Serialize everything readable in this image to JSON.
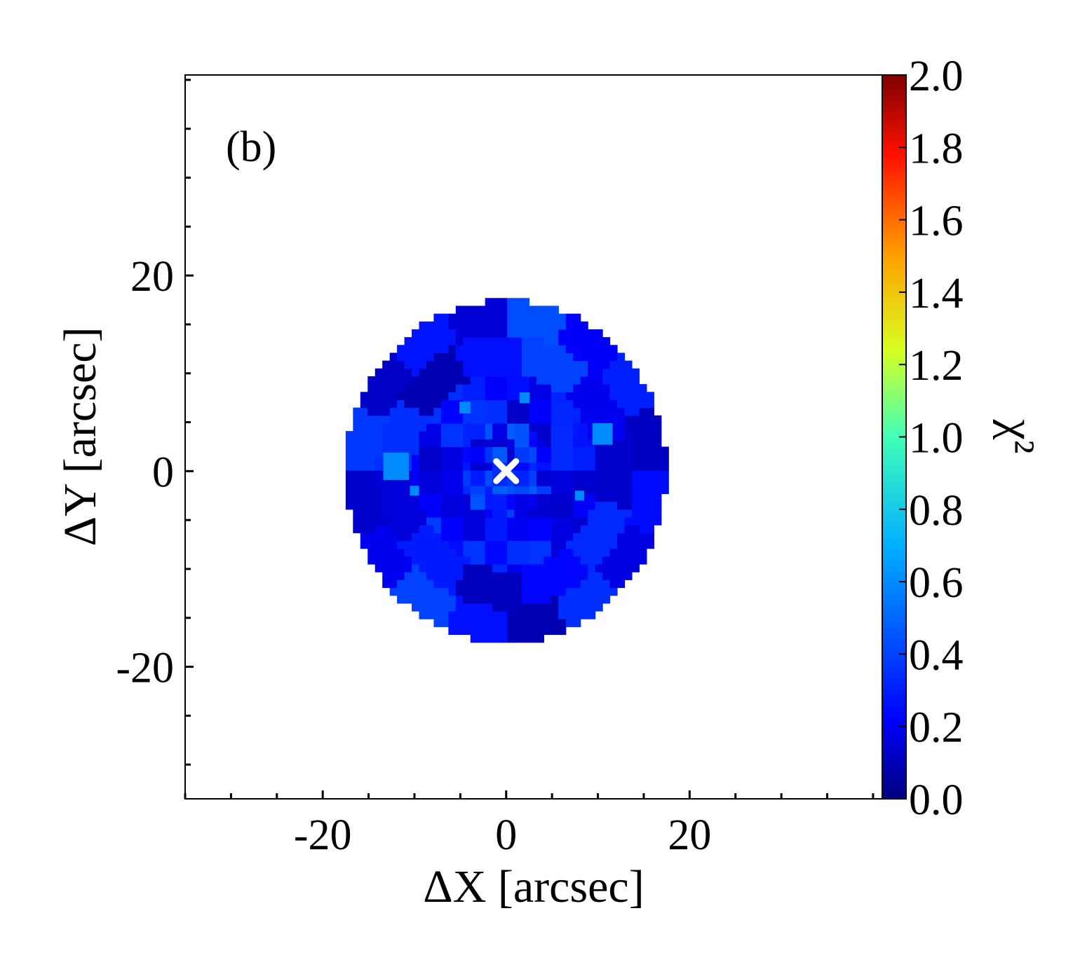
{
  "chart_data": {
    "type": "heatmap",
    "panel_label": "(b)",
    "xlabel": "ΔX [arcsec]",
    "ylabel": "ΔY [arcsec]",
    "xlim": [
      -35,
      41
    ],
    "ylim": [
      -33.5,
      40.5
    ],
    "x_ticks": [
      {
        "value": -20,
        "label": "-20"
      },
      {
        "value": 0,
        "label": "0"
      },
      {
        "value": 20,
        "label": "20"
      }
    ],
    "y_ticks": [
      {
        "value": 20,
        "label": "20"
      },
      {
        "value": 0,
        "label": "0"
      },
      {
        "value": -20,
        "label": "-20"
      }
    ],
    "x_minor_step": 5,
    "y_minor_step": 5,
    "colorbar": {
      "label": "χ²",
      "colormap": "jet",
      "range": [
        0.0,
        2.0
      ],
      "ticks": [
        "0.0",
        "0.2",
        "0.4",
        "0.6",
        "0.8",
        "1.0",
        "1.2",
        "1.4",
        "1.6",
        "1.8",
        "2.0"
      ]
    },
    "map": {
      "center": [
        0,
        0
      ],
      "radius": 17.5,
      "typical_chi2_range": [
        0.05,
        0.55
      ],
      "dominant_color": "#0e2cf0",
      "description_values": "Voronoi-binned chi-squared map; all bins between about 0.05 and 0.55"
    },
    "marker": {
      "x": 0,
      "y": 0,
      "symbol": "×",
      "color": "#ffffff"
    }
  }
}
